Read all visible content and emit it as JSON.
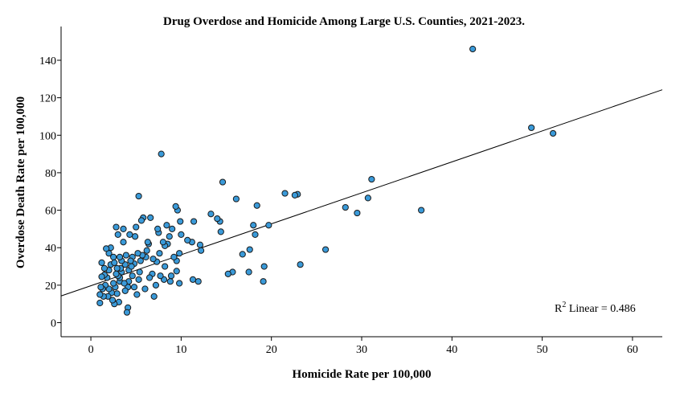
{
  "chart_data": {
    "type": "scatter",
    "title": "Drug Overdose and Homicide Among Large U.S. Counties, 2021-2023.",
    "xlabel": "Homicide Rate per 100,000",
    "ylabel": "Overdose Death Rate per 100,000",
    "xlim": [
      -3.3,
      63.3
    ],
    "ylim": [
      -7.5,
      158
    ],
    "xticks": [
      0,
      10,
      20,
      30,
      40,
      50,
      60
    ],
    "yticks": [
      0,
      20,
      40,
      60,
      80,
      100,
      120,
      140
    ],
    "grid": false,
    "annotation": {
      "text": "R² Linear = 0.486",
      "prefix": "R",
      "sup": "2",
      "rest": " Linear = 0.486"
    },
    "fit_line": {
      "intercept": 19.7,
      "slope": 1.652
    },
    "point_color": "#3a9ad9",
    "points": [
      [
        42.3,
        146
      ],
      [
        48.8,
        104
      ],
      [
        51.2,
        101
      ],
      [
        36.6,
        60
      ],
      [
        31.1,
        76.5
      ],
      [
        30.7,
        66.5
      ],
      [
        29.5,
        58.5
      ],
      [
        28.2,
        61.5
      ],
      [
        26.0,
        39
      ],
      [
        23.2,
        31
      ],
      [
        22.9,
        68.5
      ],
      [
        22.6,
        68
      ],
      [
        21.5,
        69
      ],
      [
        19.7,
        52
      ],
      [
        19.2,
        30
      ],
      [
        19.1,
        22
      ],
      [
        18.4,
        62.5
      ],
      [
        18.2,
        47
      ],
      [
        18.0,
        52
      ],
      [
        17.6,
        39
      ],
      [
        17.5,
        27
      ],
      [
        16.8,
        36.5
      ],
      [
        16.1,
        66
      ],
      [
        15.7,
        27
      ],
      [
        15.2,
        26
      ],
      [
        14.6,
        75
      ],
      [
        14.4,
        48.5
      ],
      [
        14.3,
        54
      ],
      [
        14.0,
        55.5
      ],
      [
        13.3,
        58
      ],
      [
        12.2,
        38.5
      ],
      [
        12.1,
        41.5
      ],
      [
        11.9,
        22
      ],
      [
        11.4,
        54
      ],
      [
        11.3,
        23
      ],
      [
        11.2,
        43
      ],
      [
        10.7,
        44
      ],
      [
        10.0,
        47
      ],
      [
        9.9,
        54
      ],
      [
        9.8,
        37
      ],
      [
        9.8,
        21
      ],
      [
        9.6,
        60
      ],
      [
        9.4,
        62
      ],
      [
        9.5,
        27.5
      ],
      [
        9.5,
        33
      ],
      [
        9.2,
        35
      ],
      [
        9.0,
        50
      ],
      [
        8.9,
        25
      ],
      [
        8.8,
        22
      ],
      [
        8.7,
        46
      ],
      [
        8.5,
        42
      ],
      [
        8.4,
        52
      ],
      [
        8.2,
        41
      ],
      [
        8.2,
        30
      ],
      [
        8.1,
        23
      ],
      [
        8.0,
        43
      ],
      [
        7.8,
        90
      ],
      [
        7.6,
        37
      ],
      [
        7.5,
        48
      ],
      [
        7.4,
        50
      ],
      [
        7.3,
        32.5
      ],
      [
        7.2,
        20
      ],
      [
        7.0,
        14
      ],
      [
        6.8,
        26
      ],
      [
        6.6,
        56
      ],
      [
        6.5,
        24
      ],
      [
        6.4,
        42
      ],
      [
        6.3,
        43
      ],
      [
        6.2,
        38.5
      ],
      [
        6.1,
        35
      ],
      [
        6.0,
        18
      ],
      [
        5.8,
        56
      ],
      [
        5.7,
        36
      ],
      [
        5.6,
        54.5
      ],
      [
        5.5,
        33
      ],
      [
        5.4,
        27
      ],
      [
        5.3,
        23
      ],
      [
        5.3,
        67.5
      ],
      [
        5.2,
        37
      ],
      [
        5.0,
        51
      ],
      [
        4.9,
        46
      ],
      [
        4.8,
        31.5
      ],
      [
        4.8,
        19
      ],
      [
        4.6,
        35
      ],
      [
        4.6,
        25
      ],
      [
        4.4,
        33
      ],
      [
        4.3,
        47
      ],
      [
        4.2,
        28
      ],
      [
        4.2,
        22
      ],
      [
        4.1,
        8
      ],
      [
        4.1,
        19
      ],
      [
        4.0,
        5.5
      ],
      [
        3.9,
        36
      ],
      [
        3.8,
        31
      ],
      [
        3.8,
        17
      ],
      [
        3.6,
        50
      ],
      [
        3.6,
        43
      ],
      [
        3.4,
        33
      ],
      [
        3.4,
        27
      ],
      [
        3.3,
        29
      ],
      [
        3.2,
        35
      ],
      [
        3.2,
        22
      ],
      [
        3.2,
        24
      ],
      [
        3.1,
        11
      ],
      [
        3.0,
        47
      ],
      [
        3.0,
        25
      ],
      [
        2.9,
        29
      ],
      [
        2.9,
        15.5
      ],
      [
        2.8,
        51
      ],
      [
        2.8,
        26
      ],
      [
        2.7,
        19
      ],
      [
        2.6,
        10
      ],
      [
        2.5,
        35
      ],
      [
        2.5,
        21
      ],
      [
        2.4,
        12
      ],
      [
        2.3,
        16
      ],
      [
        2.2,
        40
      ],
      [
        2.2,
        31
      ],
      [
        2.0,
        37
      ],
      [
        2.0,
        28
      ],
      [
        2.0,
        18
      ],
      [
        1.9,
        14
      ],
      [
        1.8,
        24
      ],
      [
        1.7,
        39.5
      ],
      [
        1.6,
        20
      ],
      [
        1.5,
        29
      ],
      [
        1.5,
        25.5
      ],
      [
        1.4,
        14
      ],
      [
        1.3,
        18
      ],
      [
        1.2,
        32
      ],
      [
        1.2,
        24.5
      ],
      [
        1.1,
        19
      ],
      [
        1.0,
        15
      ],
      [
        1.0,
        10.5
      ],
      [
        4.5,
        30
      ],
      [
        5.1,
        15
      ],
      [
        6.9,
        34
      ],
      [
        7.7,
        25
      ],
      [
        3.7,
        21
      ],
      [
        2.6,
        32
      ]
    ]
  }
}
